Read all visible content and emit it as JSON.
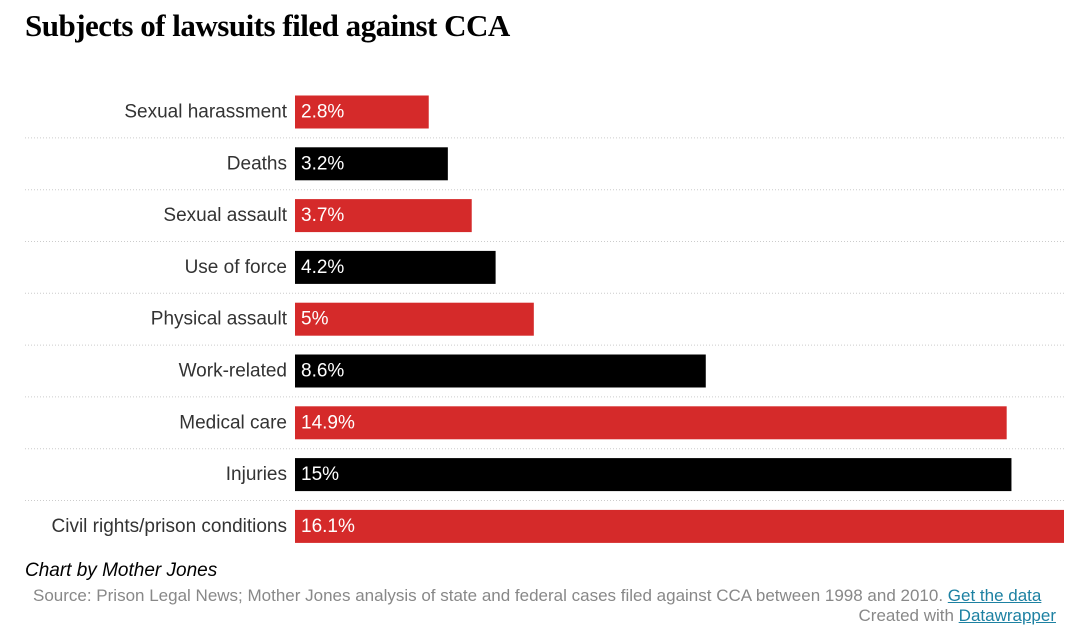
{
  "chart_data": {
    "type": "bar",
    "orientation": "horizontal",
    "title": "Subjects of lawsuits filed against CCA",
    "categories": [
      "Sexual harassment",
      "Deaths",
      "Sexual assault",
      "Use of force",
      "Physical assault",
      "Work-related",
      "Medical care",
      "Injuries",
      "Civil rights/prison conditions"
    ],
    "values": [
      2.8,
      3.2,
      3.7,
      4.2,
      5,
      8.6,
      14.9,
      15,
      16.1
    ],
    "value_labels": [
      "2.8%",
      "3.2%",
      "3.7%",
      "4.2%",
      "5%",
      "8.6%",
      "14.9%",
      "15%",
      "16.1%"
    ],
    "bar_colors": [
      "#d52a2a",
      "#000000",
      "#d52a2a",
      "#000000",
      "#d52a2a",
      "#000000",
      "#d52a2a",
      "#000000",
      "#d52a2a"
    ],
    "xlim": [
      0,
      16.1
    ],
    "xlabel": "",
    "ylabel": "",
    "grid": false,
    "row_separators": "dotted"
  },
  "footer": {
    "credit": "Chart by Mother Jones",
    "source_text": "Source: Prison Legal News; Mother Jones analysis of state and federal cases filed against CCA between 1998 and 2010. ",
    "source_link": "Get the data",
    "created_text": "Created with ",
    "created_link": "Datawrapper"
  }
}
